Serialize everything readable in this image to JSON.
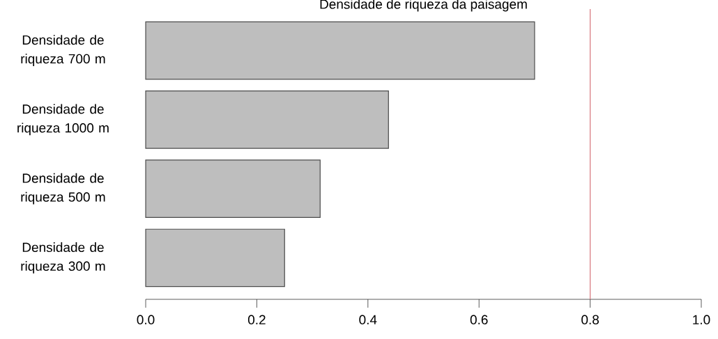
{
  "chart_data": {
    "type": "bar",
    "orientation": "horizontal",
    "title": "Densidade de riqueza da paisagem",
    "categories": [
      "Densidade de riqueza 700 m",
      "Densidade de riqueza 1000 m",
      "Densidade de riqueza 500 m",
      "Densidade de riqueza 300 m"
    ],
    "values": [
      0.7,
      0.437,
      0.314,
      0.25
    ],
    "color": "#bebebe",
    "xlim": [
      0,
      1
    ],
    "xticks": [
      {
        "value": 0,
        "label": "0.0"
      },
      {
        "value": 0.2,
        "label": "0.2"
      },
      {
        "value": 0.4,
        "label": "0.4"
      },
      {
        "value": 0.6,
        "label": "0.6"
      },
      {
        "value": 0.8,
        "label": "0.8"
      },
      {
        "value": 1,
        "label": "1.0"
      }
    ],
    "ref_lines": [
      {
        "axis": "x",
        "value": 0.8,
        "color": "#d7747b"
      }
    ]
  }
}
